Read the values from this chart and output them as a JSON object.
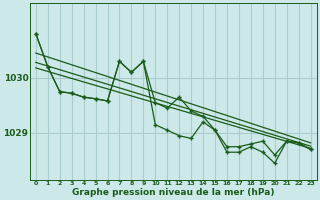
{
  "xlabel": "Graphe pression niveau de la mer (hPa)",
  "bg_color": "#cce8e8",
  "grid_color": "#aacccc",
  "line_color": "#1a5c1a",
  "x_values": [
    0,
    1,
    2,
    3,
    4,
    5,
    6,
    7,
    8,
    9,
    10,
    11,
    12,
    13,
    14,
    15,
    16,
    17,
    18,
    19,
    20,
    21,
    22,
    23
  ],
  "series1": [
    1030.8,
    1030.2,
    1029.75,
    1029.72,
    1029.65,
    1029.62,
    1029.58,
    1030.3,
    1030.1,
    1030.3,
    1029.55,
    1029.45,
    1029.65,
    1029.4,
    1029.3,
    1029.05,
    1028.75,
    1028.75,
    1028.8,
    1028.85,
    1028.6,
    1028.85,
    1028.82,
    1028.7
  ],
  "series2": [
    1030.8,
    1030.2,
    1029.75,
    1029.72,
    1029.65,
    1029.62,
    1029.58,
    1030.3,
    1030.1,
    1030.3,
    1029.15,
    1029.05,
    1028.95,
    1028.9,
    1029.2,
    1029.05,
    1028.65,
    1028.65,
    1028.75,
    1028.65,
    1028.45,
    1028.85,
    1028.82,
    1028.7
  ],
  "trend1_x": [
    0,
    23
  ],
  "trend1_y": [
    1030.45,
    1028.82
  ],
  "trend2_x": [
    0,
    23
  ],
  "trend2_y": [
    1030.28,
    1028.76
  ],
  "trend3_x": [
    0,
    23
  ],
  "trend3_y": [
    1030.18,
    1028.72
  ],
  "ylim": [
    1028.15,
    1031.35
  ],
  "yticks": [
    1029.0,
    1030.0
  ],
  "xticks": [
    0,
    1,
    2,
    3,
    4,
    5,
    6,
    7,
    8,
    9,
    10,
    11,
    12,
    13,
    14,
    15,
    16,
    17,
    18,
    19,
    20,
    21,
    22,
    23
  ]
}
